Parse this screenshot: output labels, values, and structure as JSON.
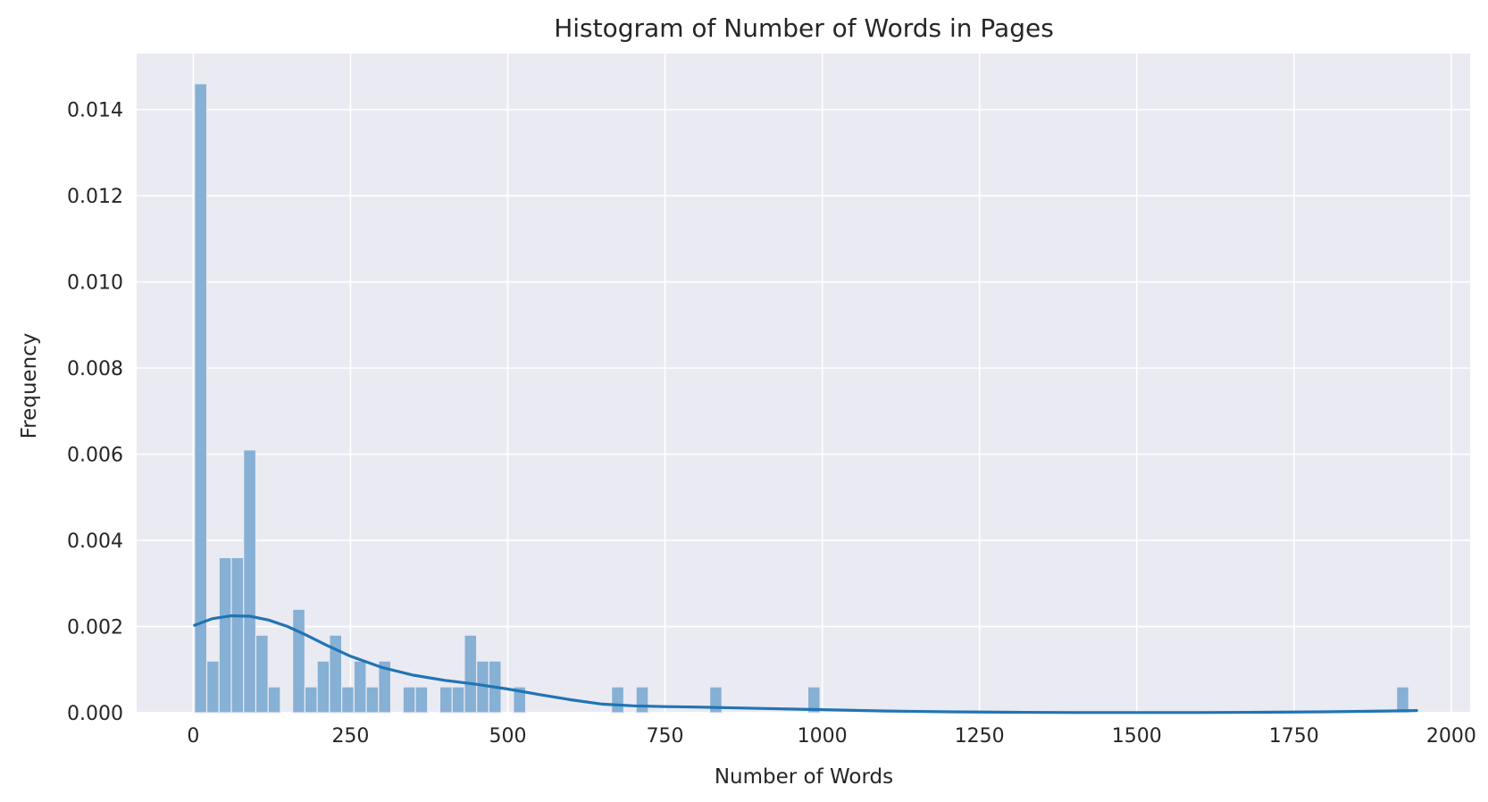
{
  "chart_data": {
    "type": "bar",
    "title": "Histogram of Number of Words in Pages",
    "xlabel": "Number of Words",
    "ylabel": "Frequency",
    "xlim": [
      -90,
      2030
    ],
    "ylim": [
      0,
      0.0153
    ],
    "xticks": [
      0,
      250,
      500,
      750,
      1000,
      1250,
      1500,
      1750,
      2000
    ],
    "yticks": [
      0.0,
      0.002,
      0.004,
      0.006,
      0.008,
      0.01,
      0.012,
      0.014
    ],
    "xtick_labels": [
      "0",
      "250",
      "500",
      "750",
      "1000",
      "1250",
      "1500",
      "1750",
      "2000"
    ],
    "ytick_labels": [
      "0.000",
      "0.002",
      "0.004",
      "0.006",
      "0.008",
      "0.010",
      "0.012",
      "0.014"
    ],
    "bin_start": 2,
    "bin_width": 19.5,
    "bins": [
      {
        "start": 2,
        "value": 0.0146
      },
      {
        "start": 21.5,
        "value": 0.0012
      },
      {
        "start": 41,
        "value": 0.0036
      },
      {
        "start": 60.5,
        "value": 0.0036
      },
      {
        "start": 80,
        "value": 0.0061
      },
      {
        "start": 99.5,
        "value": 0.0018
      },
      {
        "start": 119,
        "value": 0.0006
      },
      {
        "start": 158,
        "value": 0.0024
      },
      {
        "start": 177.5,
        "value": 0.0006
      },
      {
        "start": 197,
        "value": 0.0012
      },
      {
        "start": 216.5,
        "value": 0.0018
      },
      {
        "start": 236,
        "value": 0.0006
      },
      {
        "start": 255.5,
        "value": 0.0012
      },
      {
        "start": 275,
        "value": 0.0006
      },
      {
        "start": 294.5,
        "value": 0.0012
      },
      {
        "start": 333.5,
        "value": 0.0006
      },
      {
        "start": 353,
        "value": 0.0006
      },
      {
        "start": 392,
        "value": 0.0006
      },
      {
        "start": 411.5,
        "value": 0.0006
      },
      {
        "start": 431,
        "value": 0.0018
      },
      {
        "start": 450.5,
        "value": 0.0012
      },
      {
        "start": 470,
        "value": 0.0012
      },
      {
        "start": 509,
        "value": 0.0006
      },
      {
        "start": 665,
        "value": 0.0006
      },
      {
        "start": 704,
        "value": 0.0006
      },
      {
        "start": 821,
        "value": 0.0006
      },
      {
        "start": 977,
        "value": 0.0006
      },
      {
        "start": 1913,
        "value": 0.0006
      }
    ],
    "kde": {
      "x": [
        2,
        30,
        60,
        90,
        120,
        150,
        180,
        210,
        250,
        300,
        350,
        400,
        450,
        500,
        550,
        600,
        650,
        700,
        750,
        800,
        900,
        1000,
        1100,
        1200,
        1300,
        1400,
        1500,
        1600,
        1700,
        1800,
        1900,
        1945
      ],
      "y": [
        0.00203,
        0.00218,
        0.00225,
        0.00224,
        0.00215,
        0.002,
        0.0018,
        0.00158,
        0.00131,
        0.00105,
        0.00087,
        0.00075,
        0.00066,
        0.00055,
        0.00042,
        0.0003,
        0.0002,
        0.00016,
        0.00014,
        0.00013,
        0.0001,
        7e-05,
        4e-05,
        2e-05,
        1e-05,
        5e-06,
        5e-06,
        5e-06,
        1e-05,
        2e-05,
        4e-05,
        5e-05
      ]
    },
    "grid": true,
    "legend": "none",
    "colors": {
      "bar_fill": "#86b0d4",
      "bar_edge": "#eaeaf2",
      "kde_line": "#2074b4",
      "plot_background": "#eaeaf2",
      "grid": "#ffffff"
    }
  }
}
